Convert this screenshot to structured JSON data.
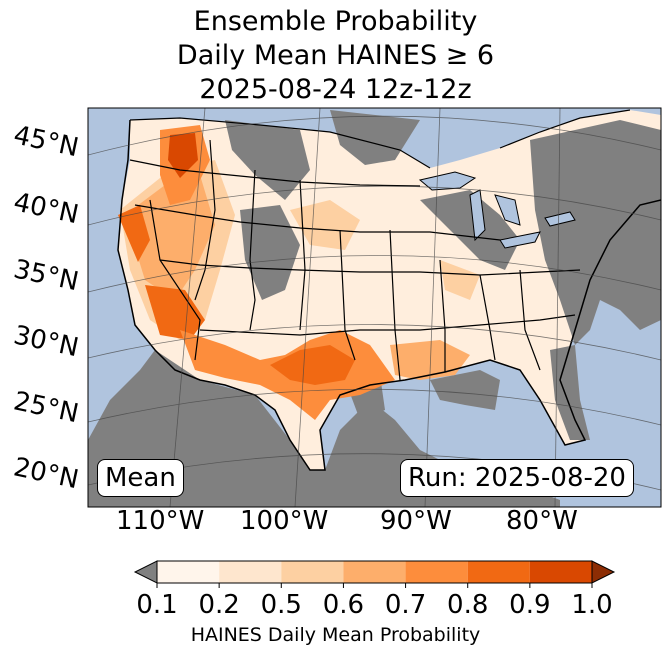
{
  "title": {
    "line1": "Ensemble Probability",
    "line2": "Daily Mean HAINES ≥ 6",
    "line3": "2025-08-24 12z-12z"
  },
  "boxes": {
    "left": "Mean",
    "right": "Run: 2025-08-20"
  },
  "lat_labels": [
    "45°N",
    "40°N",
    "35°N",
    "30°N",
    "25°N",
    "20°N"
  ],
  "lon_labels": [
    "110°W",
    "100°W",
    "90°W",
    "80°W"
  ],
  "colorbar": {
    "ticks": [
      "0.1",
      "0.2",
      "0.5",
      "0.6",
      "0.7",
      "0.8",
      "0.9",
      "1.0"
    ],
    "label": "HAINES Daily Mean Probability",
    "colors": [
      "#fff5eb",
      "#fee6ce",
      "#fdd0a2",
      "#fdae6b",
      "#fd8d3c",
      "#f16913",
      "#d94801",
      "#8c2d04"
    ],
    "under_color": "#808080",
    "ocean_color": "#b0c4de",
    "land_none_color": "#808080"
  }
}
